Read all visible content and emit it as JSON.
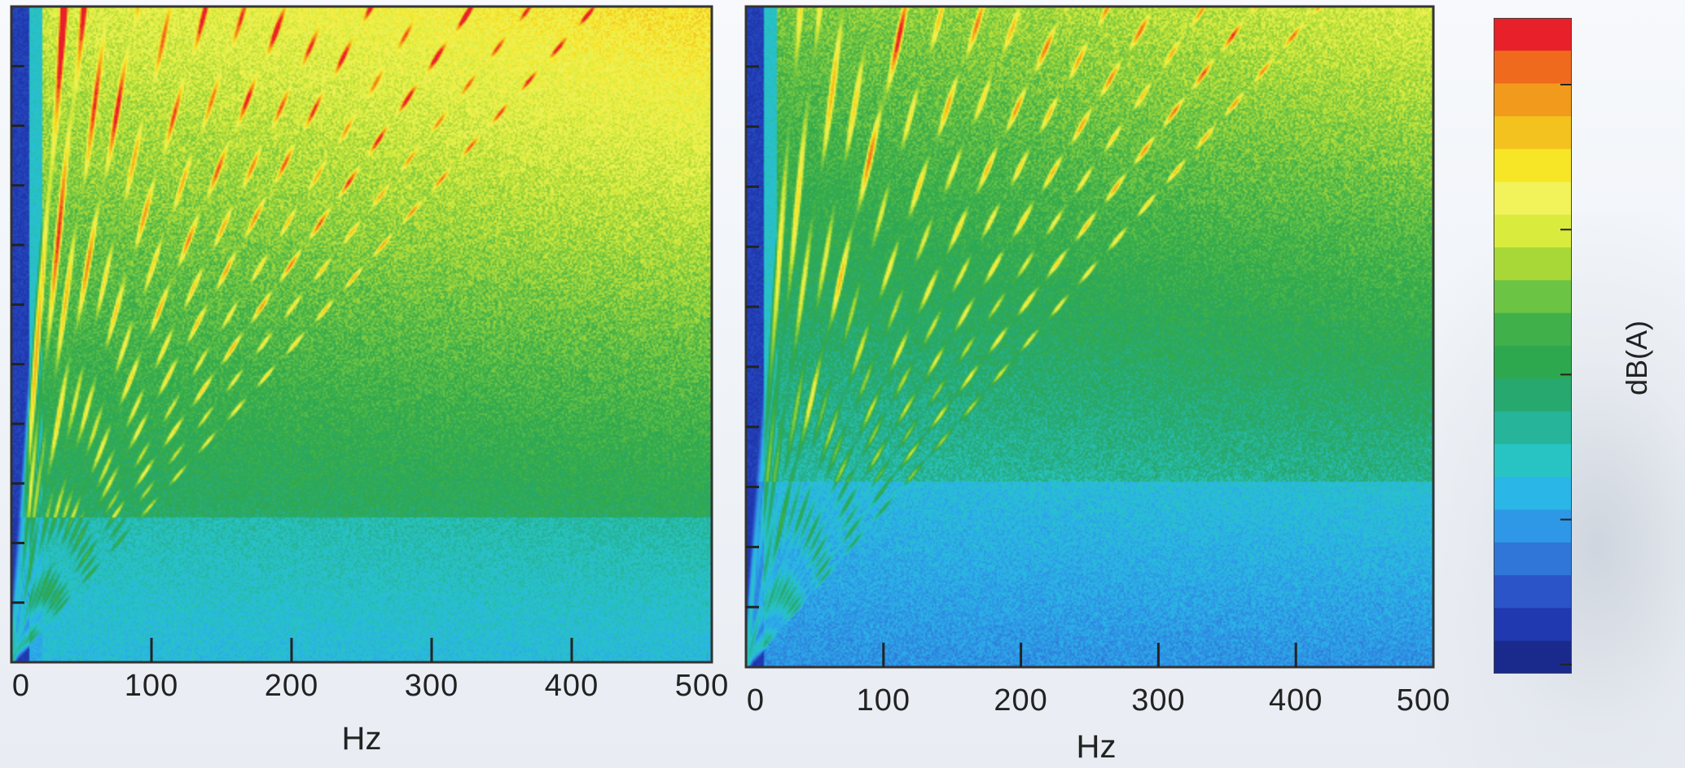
{
  "chart_data": [
    {
      "type": "heatmap",
      "subtype": "frequency-order spectrogram",
      "xlabel": "Hz",
      "xlim": [
        0,
        500
      ],
      "x_ticks": [
        "0",
        "100",
        "200",
        "300",
        "400",
        "500"
      ],
      "ylabel": "",
      "y_tick_count": 10,
      "grid": false,
      "orders": [
        {
          "slope": 13.5,
          "level": 1.0
        },
        {
          "slope": 9.8,
          "level": 0.92
        },
        {
          "slope": 7.2,
          "level": 0.8
        },
        {
          "slope": 5.6,
          "level": 0.85
        },
        {
          "slope": 4.4,
          "level": 0.7
        },
        {
          "slope": 3.6,
          "level": 0.78
        },
        {
          "slope": 3.0,
          "level": 0.72
        },
        {
          "slope": 2.55,
          "level": 0.82
        },
        {
          "slope": 2.2,
          "level": 0.75
        },
        {
          "slope": 1.95,
          "level": 0.8
        },
        {
          "slope": 1.7,
          "level": 0.7
        },
        {
          "slope": 1.52,
          "level": 0.85
        },
        {
          "slope": 1.35,
          "level": 0.72
        },
        {
          "slope": 1.2,
          "level": 0.78
        }
      ]
    },
    {
      "type": "heatmap",
      "subtype": "frequency-order spectrogram",
      "xlabel": "Hz",
      "xlim": [
        0,
        500
      ],
      "x_ticks": [
        "0",
        "100",
        "200",
        "300",
        "400",
        "500"
      ],
      "ylabel": "",
      "y_tick_count": 10,
      "grid": false,
      "orders": [
        {
          "slope": 13.0,
          "level": 0.72
        },
        {
          "slope": 9.5,
          "level": 0.7
        },
        {
          "slope": 7.0,
          "level": 0.68
        },
        {
          "slope": 5.4,
          "level": 0.65
        },
        {
          "slope": 4.3,
          "level": 0.82
        },
        {
          "slope": 3.5,
          "level": 0.6
        },
        {
          "slope": 2.9,
          "level": 0.7
        },
        {
          "slope": 2.5,
          "level": 0.62
        },
        {
          "slope": 2.15,
          "level": 0.72
        },
        {
          "slope": 1.9,
          "level": 0.66
        },
        {
          "slope": 1.68,
          "level": 0.72
        },
        {
          "slope": 1.5,
          "level": 0.64
        },
        {
          "slope": 1.35,
          "level": 0.76
        },
        {
          "slope": 1.2,
          "level": 0.7
        }
      ]
    }
  ],
  "colorbar": {
    "label": "dB(A)",
    "colors": [
      "#e8202a",
      "#f06a1e",
      "#f29a1c",
      "#f4c21e",
      "#f7e626",
      "#f2f25a",
      "#d9ec3e",
      "#a8d838",
      "#6cc444",
      "#3fb04a",
      "#2ea84e",
      "#27a86e",
      "#26b49a",
      "#28c4c4",
      "#2ab6e6",
      "#2e98e6",
      "#2f76d8",
      "#2a54c8",
      "#2038b0",
      "#1a2a8c"
    ],
    "tick_count": 7
  }
}
